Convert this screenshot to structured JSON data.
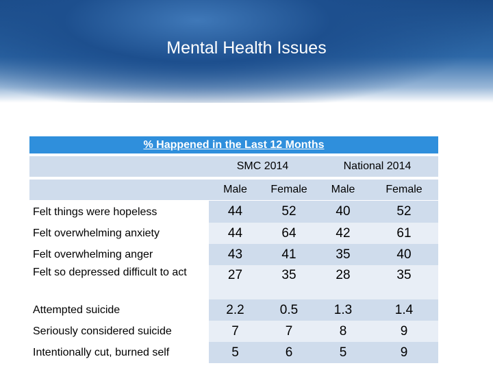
{
  "title": "Mental Health Issues",
  "table": {
    "caption": "% Happened in the Last 12 Months",
    "groups": [
      "SMC 2014",
      "National 2014"
    ],
    "subheaders": [
      "Male",
      "Female",
      "Male",
      "Female"
    ],
    "rows": [
      {
        "label": "Felt things were hopeless",
        "values": [
          44,
          52,
          40,
          52
        ]
      },
      {
        "label": "Felt overwhelming anxiety",
        "values": [
          44,
          64,
          42,
          61
        ]
      },
      {
        "label": "Felt overwhelming anger",
        "values": [
          43,
          41,
          35,
          40
        ]
      },
      {
        "label": "Felt so depressed difficult to act",
        "values": [
          27,
          35,
          28,
          35
        ]
      },
      {
        "label": "Attempted suicide",
        "values": [
          2.2,
          0.5,
          1.3,
          1.4
        ]
      },
      {
        "label": "Seriously considered suicide",
        "values": [
          7,
          7,
          8,
          9
        ]
      },
      {
        "label": "Intentionally cut, burned self",
        "values": [
          5,
          6,
          5,
          9
        ]
      }
    ]
  }
}
